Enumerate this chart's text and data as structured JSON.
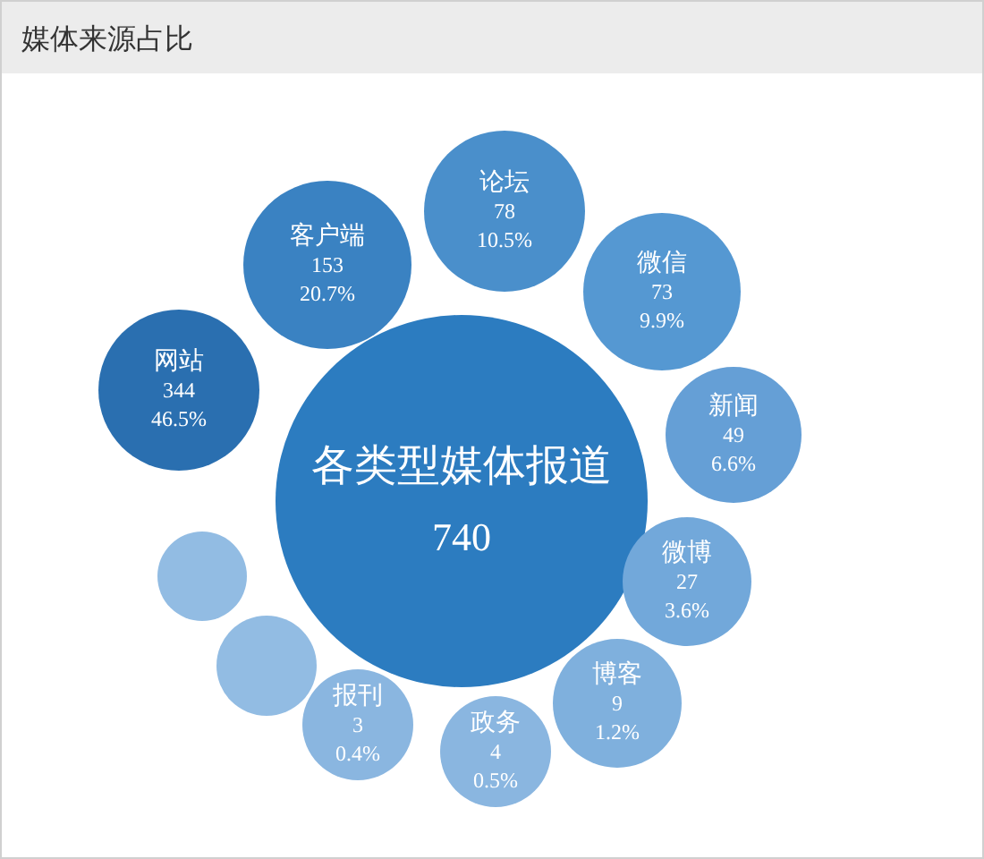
{
  "chart_data": {
    "type": "other",
    "title": "媒体来源占比",
    "categories": [
      "各类型媒体报道",
      "网站",
      "客户端",
      "论坛",
      "微信",
      "新闻",
      "微博",
      "博客",
      "政务",
      "报刊",
      null,
      null
    ],
    "values": [
      740,
      344,
      153,
      78,
      73,
      49,
      27,
      9,
      4,
      3,
      null,
      null
    ],
    "data_labels": true,
    "annotations": [
      {
        "text": "46.5%",
        "x": "网站"
      },
      {
        "text": "20.7%",
        "x": "客户端"
      },
      {
        "text": "10.5%",
        "x": "论坛"
      },
      {
        "text": "9.9%",
        "x": "微信"
      },
      {
        "text": "6.6%",
        "x": "新闻"
      },
      {
        "text": "3.6%",
        "x": "微博"
      },
      {
        "text": "1.2%",
        "x": "博客"
      },
      {
        "text": "0.5%",
        "x": "政务"
      },
      {
        "text": "0.4%",
        "x": "报刊"
      }
    ],
    "colors": [
      "#2c7cc0",
      "#2a6fb0",
      "#3a82c2",
      "#4a8fcb",
      "#5598d2",
      "#659fd6",
      "#72a8da",
      "#7fb0dd",
      "#8ab6e0",
      "#8ab6e0",
      "#92bce3",
      "#92bce3"
    ]
  }
}
